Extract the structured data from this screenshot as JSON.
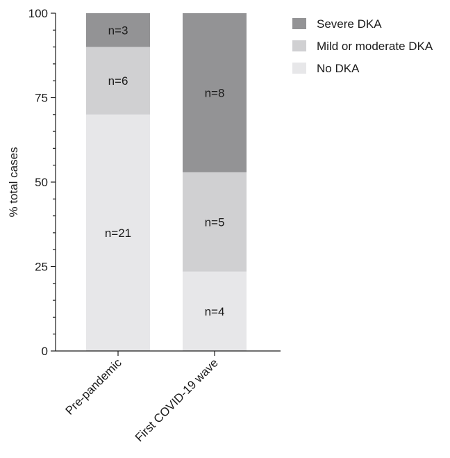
{
  "chart_data": {
    "type": "bar",
    "stacked": true,
    "title": "",
    "xlabel": "",
    "ylabel": "% total cases",
    "ylim": [
      0,
      100
    ],
    "yticks": [
      "0",
      "25",
      "50",
      "75",
      "100"
    ],
    "categories": [
      "Pre-pandemic",
      "First COVID-19 wave"
    ],
    "legend_position": "top-right",
    "series": [
      {
        "name": "No DKA",
        "color": "#e7e7e9",
        "values": [
          70,
          23.5
        ],
        "labels": [
          "n=21",
          "n=4"
        ]
      },
      {
        "name": "Mild or moderate DKA",
        "color": "#d0d0d2",
        "values": [
          20,
          29.4
        ],
        "labels": [
          "n=6",
          "n=5"
        ]
      },
      {
        "name": "Severe DKA",
        "color": "#939395",
        "values": [
          10,
          47.1
        ],
        "labels": [
          "n=3",
          "n=8"
        ]
      }
    ],
    "legend_order": [
      "Severe DKA",
      "Mild or moderate DKA",
      "No DKA"
    ]
  }
}
